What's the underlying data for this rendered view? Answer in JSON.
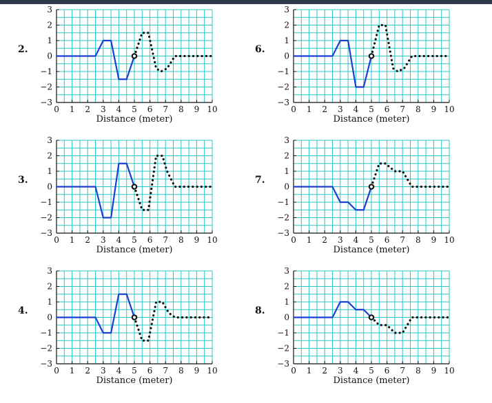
{
  "plots": [
    {
      "label": "2.",
      "xlabel": "Distance (meter)",
      "solid": [
        [
          0,
          0
        ],
        [
          2.5,
          0
        ],
        [
          3,
          1
        ],
        [
          3.5,
          1
        ],
        [
          4,
          -1.5
        ],
        [
          4.5,
          -1.5
        ],
        [
          5,
          0
        ]
      ],
      "dotted": [
        [
          5,
          0
        ],
        [
          5.5,
          1.5
        ],
        [
          5.9,
          1.5
        ],
        [
          6.4,
          -0.8
        ],
        [
          6.7,
          -1
        ],
        [
          7.1,
          -0.8
        ],
        [
          7.6,
          0
        ],
        [
          10,
          0
        ]
      ]
    },
    {
      "label": "6.",
      "xlabel": "Distance (meter)",
      "solid": [
        [
          0,
          0
        ],
        [
          2.5,
          0
        ],
        [
          3,
          1
        ],
        [
          3.5,
          1
        ],
        [
          4,
          -2
        ],
        [
          4.5,
          -2
        ],
        [
          5,
          0
        ]
      ],
      "dotted": [
        [
          5,
          0
        ],
        [
          5.5,
          2
        ],
        [
          5.9,
          2
        ],
        [
          6.4,
          -0.8
        ],
        [
          6.7,
          -1
        ],
        [
          7.1,
          -0.8
        ],
        [
          7.6,
          0
        ],
        [
          10,
          0
        ]
      ]
    },
    {
      "label": "3.",
      "xlabel": "Distance (meter)",
      "solid": [
        [
          0,
          0
        ],
        [
          2.5,
          0
        ],
        [
          3,
          -2
        ],
        [
          3.5,
          -2
        ],
        [
          4,
          1.5
        ],
        [
          4.5,
          1.5
        ],
        [
          5,
          0
        ]
      ],
      "dotted": [
        [
          5,
          0
        ],
        [
          5.5,
          -1.5
        ],
        [
          5.9,
          -1.5
        ],
        [
          6.4,
          2
        ],
        [
          6.8,
          2
        ],
        [
          7.1,
          1
        ],
        [
          7.6,
          0
        ],
        [
          10,
          0
        ]
      ]
    },
    {
      "label": "7.",
      "xlabel": "Distance (meter)",
      "solid": [
        [
          0,
          0
        ],
        [
          2.5,
          0
        ],
        [
          3,
          -1
        ],
        [
          3.5,
          -1
        ],
        [
          4,
          -1.5
        ],
        [
          4.5,
          -1.5
        ],
        [
          5,
          0
        ]
      ],
      "dotted": [
        [
          5,
          0
        ],
        [
          5.5,
          1.5
        ],
        [
          5.9,
          1.5
        ],
        [
          6.5,
          1
        ],
        [
          7,
          1
        ],
        [
          7.6,
          0
        ],
        [
          10,
          0
        ]
      ]
    },
    {
      "label": "4.",
      "xlabel": "Distance (meter)",
      "solid": [
        [
          0,
          0
        ],
        [
          2.5,
          0
        ],
        [
          3,
          -1
        ],
        [
          3.5,
          -1
        ],
        [
          4,
          1.5
        ],
        [
          4.5,
          1.5
        ],
        [
          5,
          0
        ]
      ],
      "dotted": [
        [
          5,
          0
        ],
        [
          5.5,
          -1.5
        ],
        [
          5.9,
          -1.5
        ],
        [
          6.4,
          1
        ],
        [
          6.8,
          1
        ],
        [
          7.2,
          0.3
        ],
        [
          7.6,
          0
        ],
        [
          10,
          0
        ]
      ]
    },
    {
      "label": "8.",
      "xlabel": "Distance (meter)",
      "solid": [
        [
          0,
          0
        ],
        [
          2.5,
          0
        ],
        [
          3,
          1
        ],
        [
          3.5,
          1
        ],
        [
          4,
          0.5
        ],
        [
          4.5,
          0.5
        ],
        [
          5,
          0
        ]
      ],
      "dotted": [
        [
          5,
          0
        ],
        [
          5.5,
          -0.5
        ],
        [
          6,
          -0.5
        ],
        [
          6.5,
          -1
        ],
        [
          7,
          -1
        ],
        [
          7.6,
          0
        ],
        [
          10,
          0
        ]
      ]
    }
  ],
  "chart_data": [
    {
      "type": "line",
      "xlabel": "Distance (meter)",
      "ylabel": "",
      "xlim": [
        0,
        10
      ],
      "ylim": [
        -3,
        3
      ],
      "grid": true,
      "xticks": [
        "0",
        "1",
        "2",
        "3",
        "4",
        "5",
        "6",
        "7",
        "8",
        "9",
        "10"
      ],
      "yticks": [
        "−3",
        "−2",
        "−1",
        "0",
        "1",
        "2",
        "3"
      ]
    }
  ]
}
